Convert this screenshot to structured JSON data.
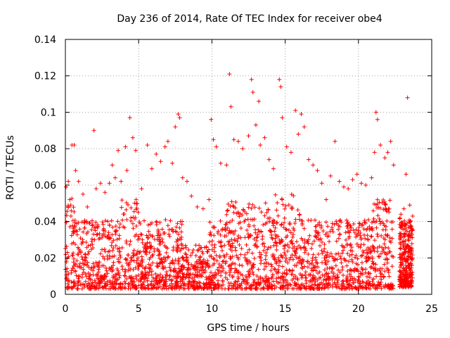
{
  "chart_data": {
    "type": "scatter",
    "title": "Day 236 of 2014, Rate Of TEC Index for receiver obe4",
    "xlabel": "GPS time / hours",
    "ylabel": "ROTI / TECUs",
    "xlim": [
      0,
      25
    ],
    "ylim": [
      0,
      0.14
    ],
    "xticks": [
      0,
      5,
      10,
      15,
      20,
      25
    ],
    "yticks": [
      0,
      0.02,
      0.04,
      0.06,
      0.08,
      0.1,
      0.12,
      0.14
    ],
    "xtick_labels": [
      "0",
      "5",
      "10",
      "15",
      "20",
      "25"
    ],
    "ytick_labels": [
      "0",
      "0.02",
      "0.04",
      "0.06",
      "0.08",
      "0.1",
      "0.12",
      "0.14"
    ],
    "grid": true,
    "marker": "plus",
    "color": "#ff0000",
    "series": [
      {
        "name": "ROTI",
        "points": [
          [
            0.05,
            0.059
          ],
          [
            0.2,
            0.062
          ],
          [
            0.3,
            0.052
          ],
          [
            0.45,
            0.082
          ],
          [
            0.6,
            0.082
          ],
          [
            0.7,
            0.068
          ],
          [
            0.9,
            0.062
          ],
          [
            1.2,
            0.055
          ],
          [
            1.5,
            0.048
          ],
          [
            1.95,
            0.09
          ],
          [
            2.1,
            0.058
          ],
          [
            2.4,
            0.061
          ],
          [
            2.7,
            0.056
          ],
          [
            3.0,
            0.061
          ],
          [
            3.2,
            0.071
          ],
          [
            3.4,
            0.064
          ],
          [
            3.6,
            0.079
          ],
          [
            3.8,
            0.062
          ],
          [
            4.1,
            0.081
          ],
          [
            4.2,
            0.068
          ],
          [
            4.4,
            0.097
          ],
          [
            4.6,
            0.086
          ],
          [
            4.8,
            0.079
          ],
          [
            5.2,
            0.058
          ],
          [
            5.6,
            0.082
          ],
          [
            5.9,
            0.069
          ],
          [
            6.2,
            0.077
          ],
          [
            6.5,
            0.073
          ],
          [
            6.8,
            0.081
          ],
          [
            7.0,
            0.084
          ],
          [
            7.3,
            0.072
          ],
          [
            7.5,
            0.092
          ],
          [
            7.7,
            0.099
          ],
          [
            7.8,
            0.097
          ],
          [
            8.0,
            0.064
          ],
          [
            8.3,
            0.062
          ],
          [
            8.6,
            0.054
          ],
          [
            9.0,
            0.048
          ],
          [
            9.4,
            0.047
          ],
          [
            9.8,
            0.052
          ],
          [
            9.95,
            0.096
          ],
          [
            10.1,
            0.085
          ],
          [
            10.3,
            0.081
          ],
          [
            10.6,
            0.072
          ],
          [
            11.0,
            0.071
          ],
          [
            11.2,
            0.121
          ],
          [
            11.3,
            0.103
          ],
          [
            11.5,
            0.085
          ],
          [
            11.8,
            0.084
          ],
          [
            12.1,
            0.08
          ],
          [
            12.5,
            0.087
          ],
          [
            12.7,
            0.118
          ],
          [
            12.8,
            0.111
          ],
          [
            13.0,
            0.093
          ],
          [
            13.2,
            0.106
          ],
          [
            13.3,
            0.082
          ],
          [
            13.6,
            0.086
          ],
          [
            13.9,
            0.074
          ],
          [
            14.2,
            0.069
          ],
          [
            14.6,
            0.118
          ],
          [
            14.7,
            0.114
          ],
          [
            14.8,
            0.097
          ],
          [
            15.1,
            0.081
          ],
          [
            15.4,
            0.078
          ],
          [
            15.7,
            0.101
          ],
          [
            15.9,
            0.088
          ],
          [
            16.1,
            0.099
          ],
          [
            16.3,
            0.092
          ],
          [
            16.6,
            0.074
          ],
          [
            16.9,
            0.071
          ],
          [
            17.2,
            0.068
          ],
          [
            17.5,
            0.061
          ],
          [
            17.8,
            0.052
          ],
          [
            18.1,
            0.065
          ],
          [
            18.4,
            0.084
          ],
          [
            18.7,
            0.062
          ],
          [
            19.0,
            0.059
          ],
          [
            19.3,
            0.058
          ],
          [
            19.6,
            0.063
          ],
          [
            19.9,
            0.066
          ],
          [
            20.2,
            0.061
          ],
          [
            20.5,
            0.06
          ],
          [
            20.9,
            0.064
          ],
          [
            21.1,
            0.078
          ],
          [
            21.2,
            0.1
          ],
          [
            21.3,
            0.096
          ],
          [
            21.5,
            0.082
          ],
          [
            21.8,
            0.075
          ],
          [
            22.0,
            0.078
          ],
          [
            22.2,
            0.084
          ],
          [
            22.4,
            0.071
          ],
          [
            22.9,
            0.044
          ],
          [
            23.1,
            0.047
          ],
          [
            23.25,
            0.066
          ],
          [
            23.35,
            0.108
          ],
          [
            23.5,
            0.049
          ],
          [
            23.7,
            0.043
          ]
        ]
      }
    ]
  }
}
